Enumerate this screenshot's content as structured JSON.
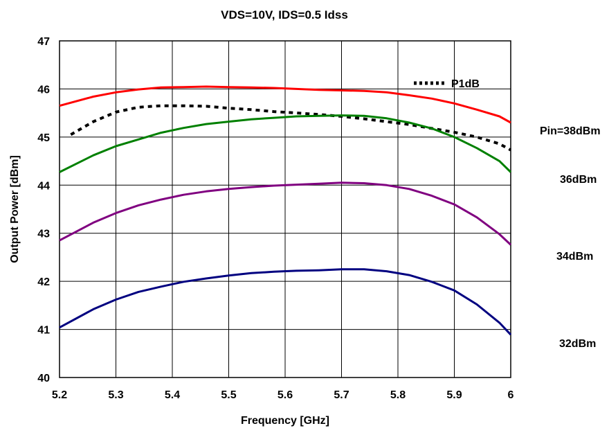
{
  "chart_data": {
    "type": "line",
    "title": "VDS=10V, IDS=0.5 Idss",
    "xlabel": "Frequency [GHz]",
    "ylabel": "Output Power [dBm]",
    "xlim": [
      5.2,
      6.0
    ],
    "ylim": [
      40,
      47
    ],
    "xticks": [
      5.2,
      5.3,
      5.4,
      5.5,
      5.6,
      5.7,
      5.8,
      5.9,
      6.0
    ],
    "xtick_labels": [
      "5.2",
      "5.3",
      "5.4",
      "5.5",
      "5.6",
      "5.7",
      "5.8",
      "5.9",
      "6"
    ],
    "yticks": [
      40,
      41,
      42,
      43,
      44,
      45,
      46,
      47
    ],
    "ytick_labels": [
      "40",
      "41",
      "42",
      "43",
      "44",
      "45",
      "46",
      "47"
    ],
    "grid": true,
    "legend": {
      "position": "top-right",
      "entries": [
        "P1dB"
      ]
    },
    "series": [
      {
        "name": "P1dB",
        "label": "P1dB",
        "color": "#000000",
        "style": "dotted",
        "x": [
          5.22,
          5.26,
          5.3,
          5.34,
          5.38,
          5.42,
          5.46,
          5.5,
          5.54,
          5.58,
          5.62,
          5.66,
          5.7,
          5.74,
          5.78,
          5.82,
          5.86,
          5.9,
          5.94,
          5.98,
          6.0
        ],
        "y": [
          45.05,
          45.32,
          45.52,
          45.62,
          45.65,
          45.65,
          45.64,
          45.6,
          45.57,
          45.53,
          45.5,
          45.47,
          45.43,
          45.38,
          45.32,
          45.26,
          45.18,
          45.1,
          45.0,
          44.86,
          44.73
        ]
      },
      {
        "name": "Pin=38dBm",
        "label": "Pin=38dBm",
        "color": "#ff0000",
        "style": "solid",
        "x": [
          5.2,
          5.26,
          5.3,
          5.34,
          5.38,
          5.42,
          5.46,
          5.5,
          5.54,
          5.58,
          5.62,
          5.66,
          5.7,
          5.74,
          5.78,
          5.82,
          5.86,
          5.9,
          5.94,
          5.98,
          6.0
        ],
        "y": [
          45.65,
          45.84,
          45.93,
          45.99,
          46.03,
          46.04,
          46.05,
          46.04,
          46.03,
          46.02,
          46.0,
          45.98,
          45.97,
          45.96,
          45.93,
          45.87,
          45.8,
          45.7,
          45.57,
          45.43,
          45.3
        ]
      },
      {
        "name": "36dBm",
        "label": "36dBm",
        "color": "#008000",
        "style": "solid",
        "x": [
          5.2,
          5.26,
          5.3,
          5.34,
          5.38,
          5.42,
          5.46,
          5.5,
          5.54,
          5.58,
          5.62,
          5.66,
          5.7,
          5.74,
          5.78,
          5.82,
          5.86,
          5.9,
          5.94,
          5.98,
          6.0
        ],
        "y": [
          44.27,
          44.62,
          44.81,
          44.95,
          45.09,
          45.19,
          45.27,
          45.32,
          45.37,
          45.4,
          45.43,
          45.44,
          45.45,
          45.44,
          45.39,
          45.3,
          45.18,
          45.0,
          44.77,
          44.5,
          44.27
        ]
      },
      {
        "name": "34dBm",
        "label": "34dBm",
        "color": "#800080",
        "style": "solid",
        "x": [
          5.2,
          5.26,
          5.3,
          5.34,
          5.38,
          5.42,
          5.46,
          5.5,
          5.54,
          5.58,
          5.62,
          5.66,
          5.7,
          5.74,
          5.78,
          5.82,
          5.86,
          5.9,
          5.94,
          5.98,
          6.0
        ],
        "y": [
          42.85,
          43.22,
          43.42,
          43.58,
          43.7,
          43.8,
          43.87,
          43.92,
          43.96,
          43.99,
          44.01,
          44.03,
          44.05,
          44.04,
          44.0,
          43.92,
          43.78,
          43.6,
          43.33,
          42.98,
          42.76
        ]
      },
      {
        "name": "32dBm",
        "label": "32dBm",
        "color": "#000080",
        "style": "solid",
        "x": [
          5.2,
          5.26,
          5.3,
          5.34,
          5.38,
          5.42,
          5.46,
          5.5,
          5.54,
          5.58,
          5.62,
          5.66,
          5.7,
          5.74,
          5.78,
          5.82,
          5.86,
          5.9,
          5.94,
          5.98,
          6.0
        ],
        "y": [
          41.04,
          41.42,
          41.62,
          41.78,
          41.89,
          41.99,
          42.06,
          42.12,
          42.17,
          42.2,
          42.22,
          42.23,
          42.25,
          42.25,
          42.21,
          42.13,
          41.99,
          41.81,
          41.52,
          41.14,
          40.89
        ]
      }
    ]
  }
}
